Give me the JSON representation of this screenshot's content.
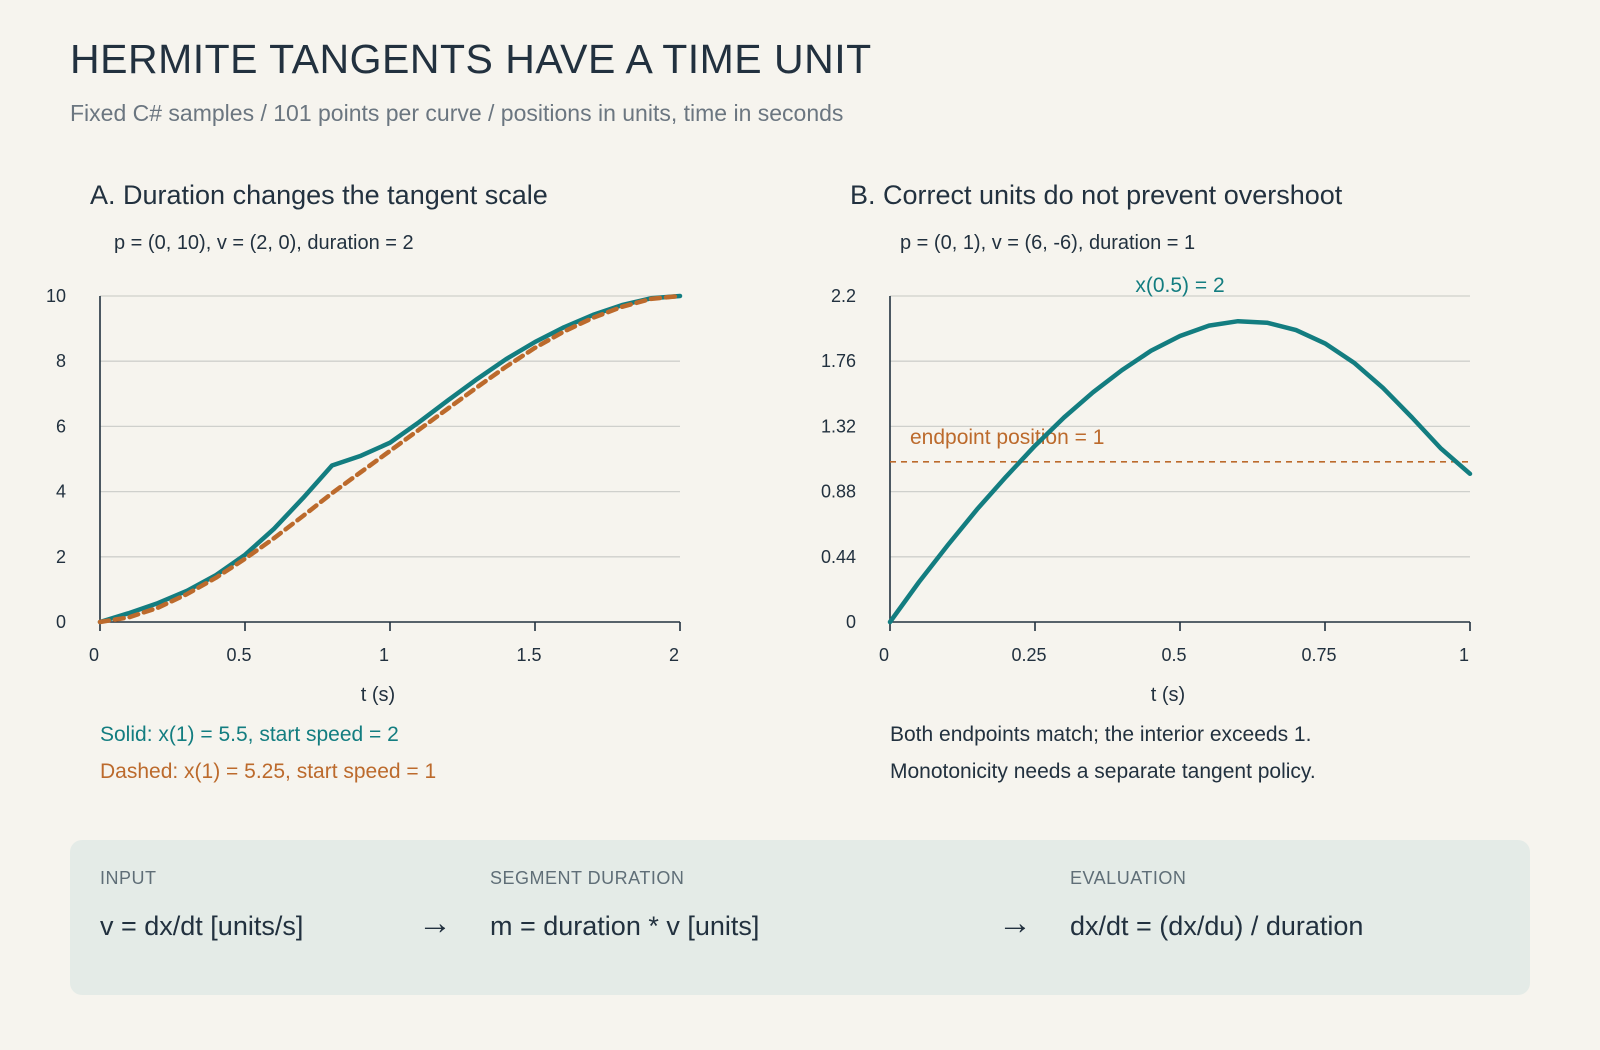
{
  "page": {
    "title": "HERMITE TANGENTS HAVE A TIME UNIT",
    "subtitle": "Fixed C# samples / 101 points per curve / positions in units, time in seconds"
  },
  "colors": {
    "teal": "#137d80",
    "orange": "#bc6a2c",
    "grid": "#cfd0cc",
    "ink": "#22313f"
  },
  "chart_data": [
    {
      "type": "line",
      "title": "A. Duration changes the tangent scale",
      "subtitle": "p = (0, 10), v = (2, 0), duration = 2",
      "xlabel": "t (s)",
      "ylabel": "",
      "xlim": [
        0,
        2
      ],
      "ylim": [
        0,
        10
      ],
      "xticks": [
        0,
        0.5,
        1,
        1.5,
        2
      ],
      "xtick_labels": [
        "0",
        "0.5",
        "1",
        "1.5",
        "2"
      ],
      "yticks": [
        0,
        2,
        4,
        6,
        8,
        10
      ],
      "ytick_labels": [
        "0",
        "2",
        "4",
        "6",
        "8",
        "10"
      ],
      "grid": true,
      "series": [
        {
          "style": "solid",
          "color": "#137d80",
          "x": [
            0,
            0.1,
            0.2,
            0.3,
            0.4,
            0.5,
            0.6,
            0.7,
            0.8,
            0.9,
            1.0,
            1.1,
            1.2,
            1.3,
            1.4,
            1.5,
            1.6,
            1.7,
            1.8,
            1.9,
            2.0
          ],
          "y": [
            0,
            0.2725,
            0.58,
            0.9575,
            1.44,
            2.0625,
            2.86,
            3.8,
            4.8,
            5.1,
            5.5,
            6.13,
            6.8,
            7.45,
            8.06,
            8.59,
            9.04,
            9.42,
            9.72,
            9.93,
            10
          ]
        },
        {
          "style": "dashed",
          "color": "#bc6a2c",
          "x": [
            0,
            0.1,
            0.2,
            0.3,
            0.4,
            0.5,
            0.6,
            0.7,
            0.8,
            0.9,
            1.0,
            1.1,
            1.2,
            1.3,
            1.4,
            1.5,
            1.6,
            1.7,
            1.8,
            1.9,
            2.0
          ],
          "y": [
            0,
            0.145,
            0.44,
            0.855,
            1.36,
            1.9375,
            2.57,
            3.25,
            3.95,
            4.6,
            5.25,
            5.9,
            6.55,
            7.2,
            7.83,
            8.41,
            8.91,
            9.33,
            9.67,
            9.91,
            10
          ]
        }
      ],
      "notes": [
        {
          "text": "Solid: x(1) = 5.5, start speed = 2",
          "color": "#137d80"
        },
        {
          "text": "Dashed: x(1) = 5.25, start speed = 1",
          "color": "#bc6a2c"
        }
      ]
    },
    {
      "type": "line",
      "title": "B. Correct units do not prevent overshoot",
      "subtitle": "p = (0, 1), v = (6, -6), duration = 1",
      "xlabel": "t (s)",
      "ylabel": "",
      "xlim": [
        0,
        1
      ],
      "ylim": [
        0,
        2.2
      ],
      "xticks": [
        0,
        0.25,
        0.5,
        0.75,
        1
      ],
      "xtick_labels": [
        "0",
        "0.25",
        "0.5",
        "0.75",
        "1"
      ],
      "yticks": [
        0,
        0.44,
        0.88,
        1.32,
        1.76,
        2.2
      ],
      "ytick_labels": [
        "0",
        "0.44",
        "0.88",
        "1.32",
        "1.76",
        "2.2"
      ],
      "grid": true,
      "series": [
        {
          "style": "solid",
          "color": "#137d80",
          "x": [
            0,
            0.05,
            0.1,
            0.15,
            0.2,
            0.25,
            0.3,
            0.35,
            0.4,
            0.45,
            0.5,
            0.55,
            0.6,
            0.65,
            0.7,
            0.75,
            0.8,
            0.85,
            0.9,
            0.95,
            1.0
          ],
          "y": [
            0,
            0.27,
            0.52,
            0.76,
            0.98,
            1.19,
            1.38,
            1.55,
            1.7,
            1.83,
            1.93,
            2.0,
            2.03,
            2.02,
            1.97,
            1.88,
            1.75,
            1.58,
            1.38,
            1.17,
            1.0
          ]
        }
      ],
      "reference_line": {
        "y": 1,
        "style": "dashed",
        "color": "#bc6a2c",
        "label": "endpoint position = 1"
      },
      "annotation": {
        "text": "x(0.5) = 2",
        "x": 0.5,
        "y": 2.2,
        "color": "#137d80"
      },
      "notes": [
        {
          "text": "Both endpoints match; the interior exceeds 1.",
          "color": "#22313f"
        },
        {
          "text": "Monotonicity needs a separate tangent policy.",
          "color": "#22313f"
        }
      ]
    }
  ],
  "flow": {
    "input_head": "INPUT",
    "input_val": "v = dx/dt [units/s]",
    "arrow1": "→",
    "duration_head": "SEGMENT DURATION",
    "duration_val": "m = duration * v [units]",
    "arrow2": "→",
    "eval_head": "EVALUATION",
    "eval_val": "dx/dt = (dx/du) / duration"
  }
}
